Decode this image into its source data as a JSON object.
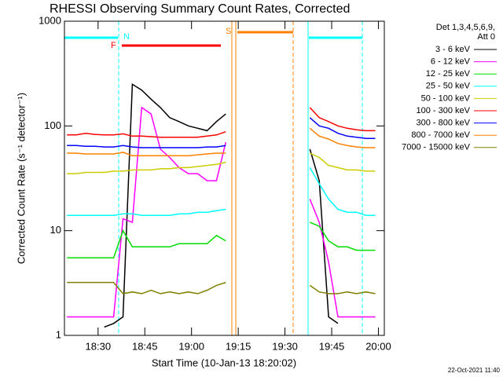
{
  "chart_data": {
    "type": "line",
    "title": "RHESSI Observing Summary Count Rates, Corrected",
    "x_label": "Start Time (10-Jan-13 18:20:02)",
    "y_label": "Corrected Count Rate (s⁻¹ detector⁻¹)",
    "legend_title": [
      "Det 1,3,4,5,6,9,",
      "Att 0"
    ],
    "timestamp": "22-Oct-2021 11:40",
    "annotations": [
      "N",
      "F",
      "S"
    ],
    "y_scale": "log",
    "legend": "outside-right",
    "xlim": [
      1099.2,
      1201.9
    ],
    "xticks": [
      {
        "value": 1110,
        "label": "18:30"
      },
      {
        "value": 1125,
        "label": "18:45"
      },
      {
        "value": 1140,
        "label": "19:00"
      },
      {
        "value": 1155,
        "label": "19:15"
      },
      {
        "value": 1170,
        "label": "19:30"
      },
      {
        "value": 1185,
        "label": "19:45"
      },
      {
        "value": 1200,
        "label": "20:00"
      }
    ],
    "ylim": [
      1,
      1000
    ],
    "yticks": [
      1,
      10,
      100,
      1000
    ],
    "x": [
      1100,
      1103,
      1106,
      1109,
      1112,
      1115,
      1118,
      1121,
      1124,
      1127,
      1130,
      1133,
      1136,
      1139,
      1142,
      1145,
      1148,
      1151,
      1154,
      1157,
      1160,
      1163,
      1166,
      1169,
      1172,
      1175,
      1178,
      1181,
      1184,
      1187,
      1190,
      1193,
      1196,
      1199
    ],
    "series": [
      {
        "name": "3 - 6 keV",
        "color": "#000000",
        "values": [
          null,
          null,
          null,
          null,
          1.2,
          1.3,
          1.5,
          250,
          220,
          180,
          150,
          120,
          110,
          100,
          95,
          90,
          110,
          130,
          null,
          null,
          null,
          null,
          null,
          null,
          null,
          null,
          60,
          30,
          1.5,
          1.3,
          null,
          null,
          null,
          null
        ]
      },
      {
        "name": "6 - 12 keV",
        "color": "#ff00ff",
        "values": [
          1.5,
          1.5,
          1.5,
          1.5,
          1.5,
          1.5,
          13,
          12,
          150,
          130,
          60,
          50,
          40,
          35,
          35,
          30,
          30,
          70,
          null,
          null,
          null,
          null,
          null,
          null,
          null,
          null,
          20,
          12,
          5,
          1.5,
          1.5,
          1.5,
          1.5,
          1.5
        ]
      },
      {
        "name": "12 - 25 keV",
        "color": "#00dd00",
        "values": [
          5.5,
          5.5,
          5.5,
          5.5,
          5.5,
          5.5,
          10,
          7,
          7,
          7,
          7,
          7,
          7.5,
          7.5,
          7.5,
          7.5,
          9,
          8,
          null,
          null,
          null,
          null,
          null,
          null,
          null,
          null,
          12,
          11,
          8,
          7,
          7,
          6.5,
          6.5,
          6.5
        ]
      },
      {
        "name": "25 - 50 keV",
        "color": "#00ffff",
        "values": [
          14,
          14,
          14,
          14,
          14,
          14,
          14.5,
          14.5,
          14,
          14,
          14,
          14,
          14.5,
          14.5,
          15,
          15,
          15.5,
          16,
          null,
          null,
          null,
          null,
          null,
          null,
          null,
          null,
          40,
          28,
          20,
          16,
          15,
          15,
          14,
          14
        ]
      },
      {
        "name": "50 - 100 keV",
        "color": "#cccc00",
        "values": [
          35,
          35,
          36,
          36,
          36,
          37,
          37,
          38,
          38,
          38,
          39,
          39,
          40,
          40,
          41,
          42,
          43,
          45,
          null,
          null,
          null,
          null,
          null,
          null,
          null,
          null,
          55,
          50,
          42,
          40,
          38,
          38,
          37,
          37
        ]
      },
      {
        "name": "100 - 300 keV",
        "color": "#ff0000",
        "values": [
          82,
          82,
          85,
          83,
          82,
          82,
          84,
          80,
          80,
          79,
          78,
          78,
          78,
          78,
          78,
          80,
          82,
          88,
          null,
          null,
          null,
          null,
          null,
          null,
          null,
          null,
          150,
          120,
          110,
          100,
          95,
          92,
          90,
          90
        ]
      },
      {
        "name": "300 - 800 keV",
        "color": "#0000ff",
        "values": [
          65,
          65,
          64,
          64,
          63,
          63,
          65,
          63,
          62,
          62,
          62,
          62,
          62,
          62,
          62,
          63,
          63,
          65,
          null,
          null,
          null,
          null,
          null,
          null,
          null,
          null,
          120,
          100,
          95,
          85,
          80,
          78,
          76,
          76
        ]
      },
      {
        "name": "800 - 7000 keV",
        "color": "#ff8000",
        "values": [
          55,
          55,
          54,
          54,
          54,
          54,
          56,
          52,
          52,
          52,
          52,
          52,
          52,
          52,
          53,
          54,
          55,
          55,
          null,
          null,
          null,
          null,
          null,
          null,
          null,
          null,
          95,
          80,
          75,
          68,
          65,
          63,
          62,
          62
        ]
      },
      {
        "name": "7000 - 15000 keV",
        "color": "#808000",
        "values": [
          3.2,
          3.2,
          3.2,
          3.2,
          3.2,
          3.2,
          2.5,
          2.6,
          2.5,
          2.7,
          2.5,
          2.6,
          2.5,
          2.6,
          2.5,
          2.7,
          3,
          3.2,
          null,
          null,
          null,
          null,
          null,
          null,
          null,
          null,
          3,
          2.6,
          2.5,
          2.5,
          2.6,
          2.5,
          2.6,
          2.5
        ]
      }
    ]
  }
}
